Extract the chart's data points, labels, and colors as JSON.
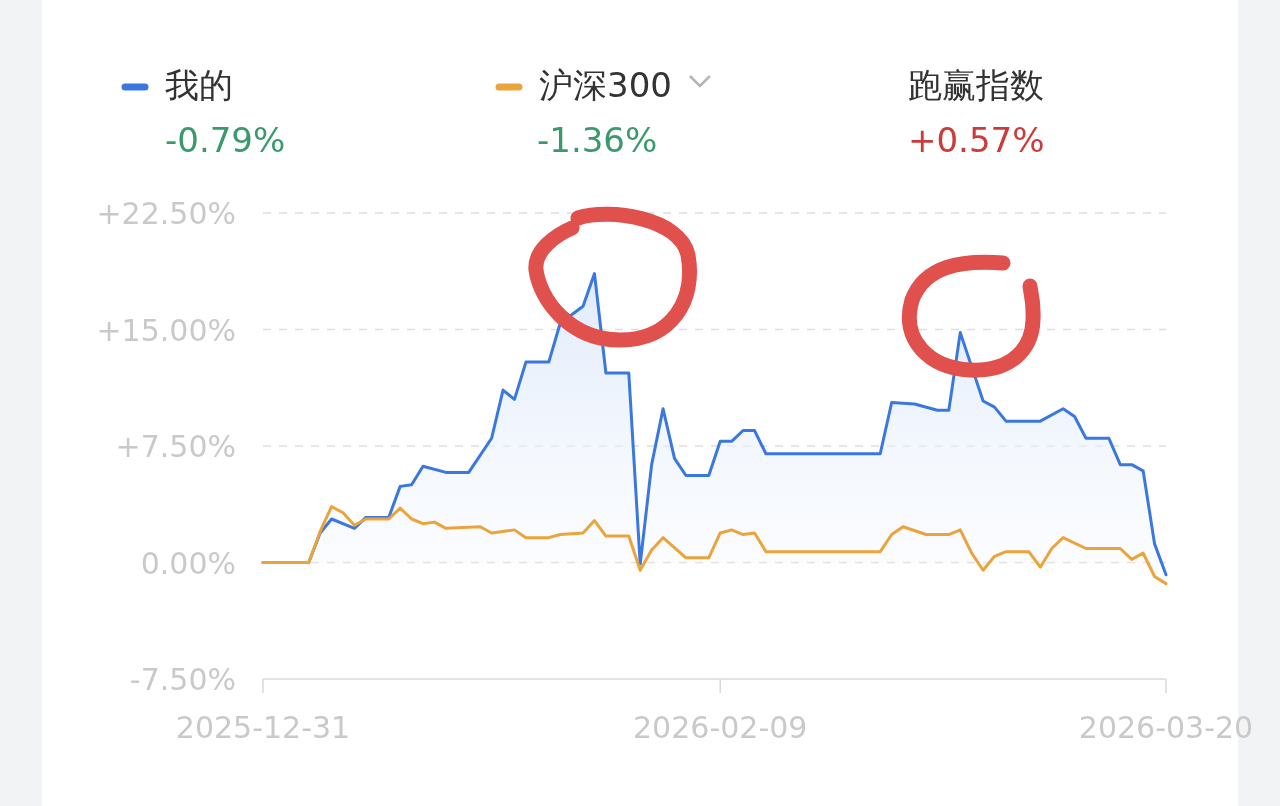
{
  "chart_data": {
    "type": "line",
    "x": [
      "2025-12-31",
      "2026-01-04",
      "2026-01-05",
      "2026-01-06",
      "2026-01-08",
      "2026-01-09",
      "2026-01-11",
      "2026-01-12",
      "2026-01-13",
      "2026-01-14",
      "2026-01-16",
      "2026-01-18",
      "2026-01-20",
      "2026-01-21",
      "2026-01-22",
      "2026-01-23",
      "2026-01-25",
      "2026-01-26",
      "2026-01-28",
      "2026-01-29",
      "2026-01-30",
      "2026-02-01",
      "2026-02-02",
      "2026-02-03",
      "2026-02-04",
      "2026-02-05",
      "2026-02-06",
      "2026-02-08",
      "2026-02-09",
      "2026-02-10",
      "2026-02-11",
      "2026-02-12",
      "2026-02-13",
      "2026-02-23",
      "2026-02-24",
      "2026-02-26",
      "2026-02-28",
      "2026-03-01",
      "2026-03-02",
      "2026-03-04",
      "2026-03-05",
      "2026-03-06",
      "2026-03-09",
      "2026-03-11",
      "2026-03-12",
      "2026-03-13",
      "2026-03-15",
      "2026-03-16",
      "2026-03-17",
      "2026-03-18",
      "2026-03-19",
      "2026-03-20"
    ],
    "series": [
      {
        "name": "我的",
        "type": "area",
        "color": "#3a78e0",
        "values": [
          0,
          0,
          1.9,
          2.8,
          2.2,
          2.9,
          2.9,
          4.9,
          5.0,
          6.2,
          5.8,
          5.8,
          8.0,
          11.1,
          10.5,
          12.9,
          12.9,
          15.4,
          16.5,
          18.6,
          12.2,
          12.2,
          -0.1,
          6.3,
          9.9,
          6.7,
          5.6,
          5.6,
          7.8,
          7.8,
          8.5,
          8.5,
          7.0,
          7.0,
          10.3,
          10.2,
          9.8,
          9.8,
          14.8,
          10.4,
          10.0,
          9.1,
          9.1,
          9.9,
          9.4,
          8.0,
          8.0,
          6.3,
          6.3,
          5.9,
          1.2,
          -0.79
        ]
      },
      {
        "name": "沪深300",
        "color": "#eba43c",
        "x": [
          "2025-12-31",
          "2026-01-04",
          "2026-01-05",
          "2026-01-06",
          "2026-01-07",
          "2026-01-08",
          "2026-01-09",
          "2026-01-11",
          "2026-01-12",
          "2026-01-13",
          "2026-01-14",
          "2026-01-15",
          "2026-01-16",
          "2026-01-19",
          "2026-01-20",
          "2026-01-22",
          "2026-01-23",
          "2026-01-25",
          "2026-01-26",
          "2026-01-28",
          "2026-01-29",
          "2026-01-30",
          "2026-02-01",
          "2026-02-02",
          "2026-02-03",
          "2026-02-04",
          "2026-02-06",
          "2026-02-08",
          "2026-02-09",
          "2026-02-10",
          "2026-02-11",
          "2026-02-12",
          "2026-02-13",
          "2026-02-23",
          "2026-02-24",
          "2026-02-25",
          "2026-02-27",
          "2026-03-01",
          "2026-03-02",
          "2026-03-03",
          "2026-03-04",
          "2026-03-05",
          "2026-03-06",
          "2026-03-08",
          "2026-03-09",
          "2026-03-10",
          "2026-03-11",
          "2026-03-13",
          "2026-03-16",
          "2026-03-17",
          "2026-03-18",
          "2026-03-19",
          "2026-03-20"
        ],
        "values": [
          0,
          0,
          2.0,
          3.6,
          3.2,
          2.4,
          2.8,
          2.8,
          3.5,
          2.8,
          2.5,
          2.6,
          2.2,
          2.3,
          1.9,
          2.1,
          1.6,
          1.6,
          1.8,
          1.9,
          2.7,
          1.7,
          1.7,
          -0.5,
          0.8,
          1.6,
          0.3,
          0.3,
          1.9,
          2.1,
          1.8,
          1.9,
          0.7,
          0.7,
          1.8,
          2.3,
          1.8,
          1.8,
          2.1,
          0.6,
          -0.5,
          0.4,
          0.7,
          0.7,
          -0.3,
          0.9,
          1.6,
          0.9,
          0.9,
          0.2,
          0.6,
          -0.9,
          -1.36
        ]
      }
    ],
    "xlim": [
      "2025-12-31",
      "2026-03-20"
    ],
    "xticks": [
      "2025-12-31",
      "2026-02-09",
      "2026-03-20"
    ],
    "ylim": [
      -7.5,
      22.5
    ],
    "yticks": [
      {
        "value": -7.5,
        "label": "-7.50%"
      },
      {
        "value": 0,
        "label": "0.00%"
      },
      {
        "value": 7.5,
        "label": "+7.50%"
      },
      {
        "value": 15,
        "label": "+15.00%"
      },
      {
        "value": 22.5,
        "label": "+22.50%"
      }
    ],
    "grid": "y",
    "legend": "top",
    "annotations": [
      "-0.79%",
      "-1.36%",
      "跑赢指数",
      "+0.57%"
    ]
  }
}
